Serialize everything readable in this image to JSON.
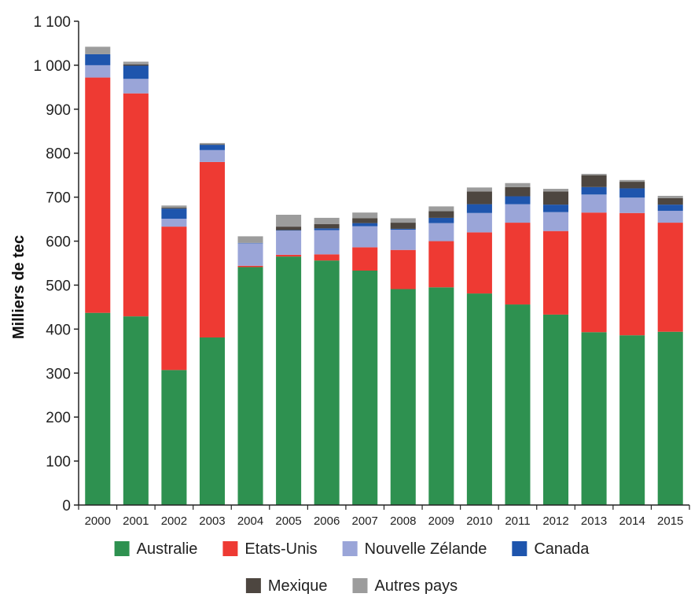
{
  "chart_data": {
    "type": "bar",
    "stacked": true,
    "ylabel": "Milliers de tec",
    "xlabel": "",
    "ylim": [
      0,
      1100
    ],
    "yticks": [
      0,
      100,
      200,
      300,
      400,
      500,
      600,
      700,
      800,
      900,
      1000,
      1100
    ],
    "ytick_labels": [
      "0",
      "100",
      "200",
      "300",
      "400",
      "500",
      "600",
      "700",
      "800",
      "900",
      "1 000",
      "1 100"
    ],
    "grid": false,
    "legend_position": "bottom",
    "categories": [
      "2000",
      "2001",
      "2002",
      "2003",
      "2004",
      "2005",
      "2006",
      "2007",
      "2008",
      "2009",
      "2010",
      "2011",
      "2012",
      "2013",
      "2014",
      "2015"
    ],
    "series": [
      {
        "name": "Australie",
        "color": "#2e9150",
        "values": [
          437,
          429,
          307,
          381,
          541,
          565,
          556,
          533,
          491,
          495,
          481,
          456,
          433,
          393,
          386,
          394
        ]
      },
      {
        "name": "Etats-Unis",
        "color": "#ee3a33",
        "values": [
          535,
          507,
          326,
          399,
          3,
          4,
          14,
          53,
          89,
          105,
          139,
          186,
          190,
          272,
          278,
          248
        ]
      },
      {
        "name": "Nouvelle Zélande",
        "color": "#9aa5d8",
        "values": [
          28,
          33,
          18,
          27,
          51,
          55,
          55,
          48,
          46,
          41,
          44,
          42,
          43,
          41,
          35,
          27
        ]
      },
      {
        "name": "Canada",
        "color": "#1e55ad",
        "values": [
          25,
          30,
          23,
          12,
          1,
          1,
          4,
          7,
          2,
          12,
          20,
          18,
          17,
          17,
          21,
          14
        ]
      },
      {
        "name": "Mexique",
        "color": "#4d4640",
        "values": [
          0,
          3,
          2,
          1,
          0,
          8,
          10,
          11,
          14,
          15,
          29,
          21,
          30,
          27,
          15,
          15
        ]
      },
      {
        "name": "Autres pays",
        "color": "#9c9c9c",
        "values": [
          17,
          6,
          5,
          3,
          15,
          27,
          14,
          13,
          10,
          11,
          9,
          9,
          6,
          3,
          4,
          5
        ]
      }
    ]
  }
}
